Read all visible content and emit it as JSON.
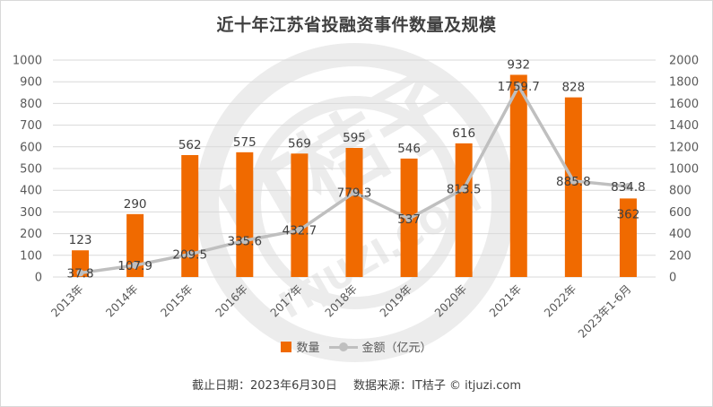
{
  "title": "近十年江苏省投融资事件数量及规模",
  "legend": {
    "bar_label": "数量",
    "line_label": "金额（亿元）"
  },
  "footer": {
    "date_text": "截止日期：2023年6月30日",
    "source_text": "数据来源：IT桔子 © itjuzi.com"
  },
  "watermark": {
    "text": "IT桔子",
    "url": "ITJUZI.COM"
  },
  "colors": {
    "bar": "#f06a00",
    "line": "#bfbfbf",
    "grid": "#d9d9d9"
  },
  "chart_data": {
    "type": "bar",
    "title": "近十年江苏省投融资事件数量及规模",
    "categories": [
      "2013年",
      "2014年",
      "2015年",
      "2016年",
      "2017年",
      "2018年",
      "2019年",
      "2020年",
      "2021年",
      "2022年",
      "2023年1-6月"
    ],
    "series": [
      {
        "name": "数量",
        "type": "bar",
        "axis": "left",
        "values": [
          123,
          290,
          562,
          575,
          569,
          595,
          546,
          616,
          932,
          828,
          362
        ]
      },
      {
        "name": "金额（亿元）",
        "type": "line",
        "axis": "right",
        "values": [
          37.8,
          107.9,
          209.5,
          335.6,
          432.7,
          779.3,
          537,
          813.5,
          1759.7,
          885.8,
          834.8
        ]
      }
    ],
    "y_left": {
      "lim": [
        0,
        1000
      ],
      "ticks": [
        0,
        100,
        200,
        300,
        400,
        500,
        600,
        700,
        800,
        900,
        1000
      ]
    },
    "y_right": {
      "lim": [
        0,
        2000
      ],
      "ticks": [
        0,
        200,
        400,
        600,
        800,
        1000,
        1200,
        1400,
        1600,
        1800,
        2000
      ]
    },
    "bar_labels": [
      "123",
      "290",
      "562",
      "575",
      "569",
      "595",
      "546",
      "616",
      "932",
      "828",
      "362"
    ],
    "line_labels": [
      "37.8",
      "107.9",
      "209.5",
      "335.6",
      "432.7",
      "779.3",
      "537",
      "813.5",
      "1759.7",
      "885.8",
      "834.8"
    ],
    "grid": true,
    "legend_position": "bottom"
  }
}
